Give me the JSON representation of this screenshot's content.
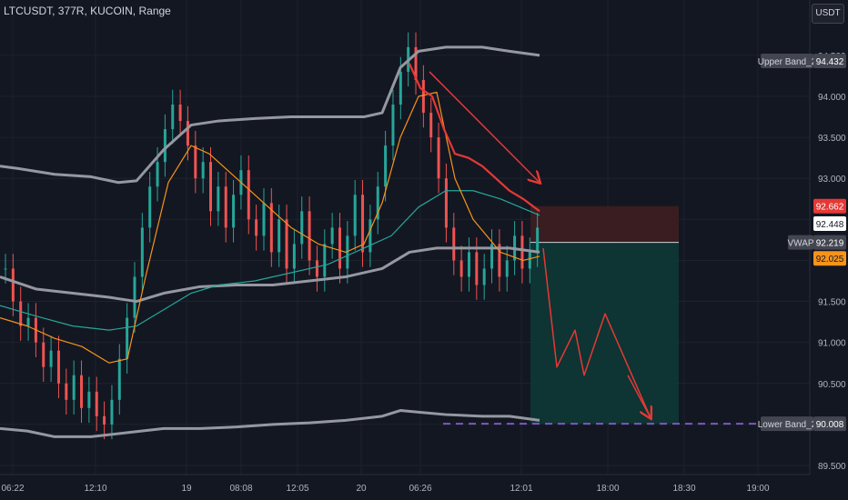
{
  "header": {
    "title": "LTCUSDT, 377R, KUCOIN, Range"
  },
  "currency_button": {
    "label": "USDT"
  },
  "colors": {
    "background": "#131722",
    "grid": "#1e222d",
    "bull": "#26a69a",
    "bear": "#ef5350",
    "band": "#9598a1",
    "vwap": "#26a69a",
    "ma": "#f7931a",
    "ema": "#e53935",
    "short_risk": "#3b1d22",
    "short_target": "#0e3a36"
  },
  "chart_data": {
    "type": "candlestick",
    "symbol": "LTCUSDT",
    "interval": "377R",
    "exchange": "KUCOIN",
    "ylim": [
      89.4,
      94.8
    ],
    "y_ticks": [
      "89.500",
      "90.000",
      "90.500",
      "91.000",
      "91.500",
      "92.000",
      "92.500",
      "93.000",
      "93.500",
      "94.000",
      "94.500"
    ],
    "x_ticks": [
      "06:22",
      "12:10",
      "19",
      "08:08",
      "12:05",
      "20",
      "06:26",
      "12:01",
      "18:00",
      "18:30",
      "19:00"
    ],
    "labels": {
      "upper_band": {
        "name": "Upper Band_2",
        "value": "94.432"
      },
      "vwap": {
        "name": "VWAP",
        "value": "92.219"
      },
      "lower_band": {
        "name": "Lower Band_2",
        "value": "90.008"
      },
      "price_stop": "92.662",
      "price_last": "92.448",
      "price_ma": "92.025"
    },
    "position": {
      "type": "short",
      "stop": 92.662,
      "entry": 92.219,
      "target": 90.008
    },
    "upper_band": [
      [
        0,
        93.15
      ],
      [
        20,
        93.12
      ],
      [
        60,
        93.05
      ],
      [
        100,
        93.02
      ],
      [
        130,
        92.95
      ],
      [
        150,
        92.97
      ],
      [
        180,
        93.35
      ],
      [
        210,
        93.65
      ],
      [
        240,
        93.7
      ],
      [
        280,
        93.73
      ],
      [
        320,
        93.75
      ],
      [
        360,
        93.75
      ],
      [
        400,
        93.75
      ],
      [
        420,
        93.8
      ],
      [
        440,
        94.35
      ],
      [
        460,
        94.55
      ],
      [
        490,
        94.6
      ],
      [
        530,
        94.6
      ],
      [
        560,
        94.55
      ],
      [
        593,
        94.5
      ]
    ],
    "lower_band": [
      [
        0,
        89.95
      ],
      [
        30,
        89.92
      ],
      [
        60,
        89.85
      ],
      [
        100,
        89.85
      ],
      [
        140,
        89.9
      ],
      [
        180,
        89.95
      ],
      [
        220,
        89.95
      ],
      [
        260,
        89.97
      ],
      [
        300,
        90.0
      ],
      [
        340,
        90.02
      ],
      [
        380,
        90.05
      ],
      [
        420,
        90.1
      ],
      [
        440,
        90.17
      ],
      [
        460,
        90.15
      ],
      [
        490,
        90.12
      ],
      [
        530,
        90.1
      ],
      [
        560,
        90.1
      ],
      [
        593,
        90.05
      ]
    ],
    "vwap_line": [
      [
        0,
        91.45
      ],
      [
        40,
        91.32
      ],
      [
        80,
        91.2
      ],
      [
        120,
        91.15
      ],
      [
        150,
        91.2
      ],
      [
        180,
        91.4
      ],
      [
        210,
        91.6
      ],
      [
        240,
        91.7
      ],
      [
        280,
        91.75
      ],
      [
        320,
        91.85
      ],
      [
        360,
        91.95
      ],
      [
        400,
        92.15
      ],
      [
        430,
        92.3
      ],
      [
        460,
        92.65
      ],
      [
        490,
        92.85
      ],
      [
        520,
        92.85
      ],
      [
        550,
        92.75
      ],
      [
        593,
        92.55
      ]
    ],
    "lower_band_inner": [
      [
        0,
        91.8
      ],
      [
        40,
        91.65
      ],
      [
        80,
        91.6
      ],
      [
        120,
        91.55
      ],
      [
        150,
        91.5
      ],
      [
        180,
        91.6
      ],
      [
        220,
        91.68
      ],
      [
        260,
        91.7
      ],
      [
        300,
        91.7
      ],
      [
        340,
        91.75
      ],
      [
        380,
        91.8
      ],
      [
        420,
        91.9
      ],
      [
        450,
        92.1
      ],
      [
        480,
        92.15
      ],
      [
        520,
        92.15
      ],
      [
        560,
        92.15
      ],
      [
        593,
        92.1
      ]
    ],
    "ma_line": [
      [
        0,
        91.3
      ],
      [
        30,
        91.2
      ],
      [
        60,
        91.05
      ],
      [
        90,
        90.95
      ],
      [
        120,
        90.75
      ],
      [
        140,
        90.8
      ],
      [
        160,
        91.8
      ],
      [
        185,
        92.95
      ],
      [
        210,
        93.4
      ],
      [
        230,
        93.3
      ],
      [
        260,
        93.0
      ],
      [
        290,
        92.7
      ],
      [
        320,
        92.4
      ],
      [
        350,
        92.2
      ],
      [
        380,
        92.1
      ],
      [
        400,
        92.2
      ],
      [
        420,
        92.7
      ],
      [
        440,
        93.5
      ],
      [
        460,
        94.0
      ],
      [
        480,
        94.05
      ],
      [
        500,
        93.0
      ],
      [
        520,
        92.5
      ],
      [
        550,
        92.1
      ],
      [
        575,
        92.0
      ],
      [
        593,
        92.05
      ]
    ],
    "ema_line": [
      [
        450,
        94.4
      ],
      [
        462,
        94.1
      ],
      [
        475,
        94.0
      ],
      [
        488,
        93.6
      ],
      [
        500,
        93.3
      ],
      [
        515,
        93.25
      ],
      [
        530,
        93.15
      ],
      [
        545,
        93.0
      ],
      [
        560,
        92.85
      ],
      [
        575,
        92.75
      ],
      [
        593,
        92.6
      ]
    ],
    "candles_left": [
      91.9,
      91.5,
      91.2,
      91.3,
      91.0,
      90.7,
      90.9,
      90.5,
      90.3,
      90.6,
      90.2,
      90.4,
      90.1,
      90.0,
      90.3,
      90.8,
      91.3,
      91.8,
      92.4,
      92.9,
      93.2,
      93.6,
      93.9,
      93.7,
      93.4,
      93.0,
      93.2,
      92.6,
      92.9,
      92.4,
      92.8,
      93.1,
      92.5,
      92.3,
      92.7,
      92.1,
      92.5,
      91.9,
      92.2,
      92.6,
      92.0,
      91.8,
      92.2,
      92.4,
      91.9,
      92.3,
      92.8,
      92.1,
      92.5,
      92.9,
      93.4,
      93.9,
      94.3,
      94.6,
      94.2,
      93.8,
      93.5,
      93.0,
      92.4,
      92.0,
      91.8,
      92.1,
      91.7,
      91.9,
      92.2,
      91.8,
      92.0,
      92.3,
      91.9,
      92.1,
      92.4
    ],
    "projection": [
      [
        597,
        92.15
      ],
      [
        612,
        90.7
      ],
      [
        632,
        91.15
      ],
      [
        642,
        90.6
      ],
      [
        665,
        91.35
      ],
      [
        715,
        90.08
      ]
    ],
    "arrows": [
      {
        "from": [
          472,
          94.3
        ],
        "to": [
          593,
          92.95
        ]
      },
      {
        "from": [
          690,
          90.6
        ],
        "to": [
          715,
          90.08
        ]
      }
    ]
  }
}
